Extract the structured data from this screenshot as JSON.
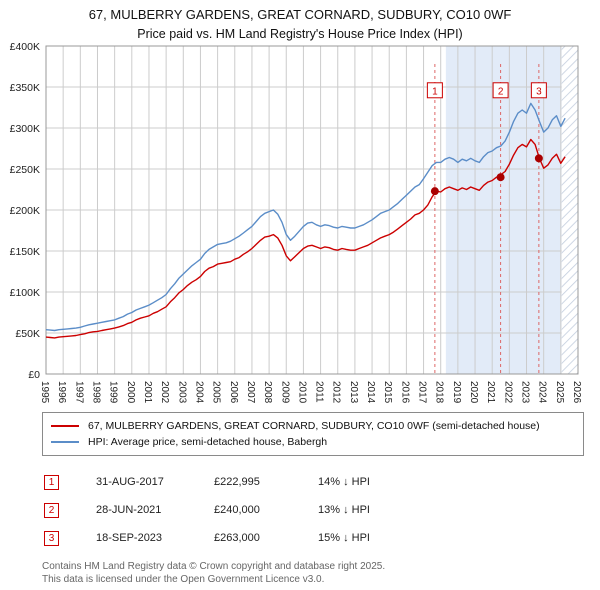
{
  "title": "67, MULBERRY GARDENS, GREAT CORNARD, SUDBURY, CO10 0WF",
  "subtitle": "Price paid vs. HM Land Registry's House Price Index (HPI)",
  "colors": {
    "property": "#cc0000",
    "hpi": "#5b8dc8",
    "sale_dot": "#aa0000",
    "dashed_line": "#dd6666",
    "grid": "#cccccc",
    "plot_border": "#999999",
    "shade": "#e2ebf8",
    "hatch_line": "#c3cede",
    "axis_text": "#222222"
  },
  "legend": {
    "items": [
      {
        "label": "67, MULBERRY GARDENS, GREAT CORNARD, SUDBURY, CO10 0WF (semi-detached house)",
        "color": "#cc0000"
      },
      {
        "label": "HPI: Average price, semi-detached house, Babergh",
        "color": "#5b8dc8"
      }
    ]
  },
  "table": {
    "rows": [
      {
        "num": "1",
        "date": "31-AUG-2017",
        "price": "£222,995",
        "vs_hpi": "14% ↓ HPI"
      },
      {
        "num": "2",
        "date": "28-JUN-2021",
        "price": "£240,000",
        "vs_hpi": "13% ↓ HPI"
      },
      {
        "num": "3",
        "date": "18-SEP-2023",
        "price": "£263,000",
        "vs_hpi": "15% ↓ HPI"
      }
    ]
  },
  "footer": {
    "line1": "Contains HM Land Registry data © Crown copyright and database right 2025.",
    "line2": "This data is licensed under the Open Government Licence v3.0."
  },
  "chart_data": {
    "type": "line",
    "title": "67, MULBERRY GARDENS, GREAT CORNARD, SUDBURY, CO10 0WF",
    "subtitle": "Price paid vs. HM Land Registry's House Price Index (HPI)",
    "x_unit": "year",
    "y_unit": "GBP thousands",
    "xlim": [
      1995,
      2026
    ],
    "ylim": [
      0,
      400
    ],
    "xticks": [
      1995,
      1996,
      1997,
      1998,
      1999,
      2000,
      2001,
      2002,
      2003,
      2004,
      2005,
      2006,
      2007,
      2008,
      2009,
      2010,
      2011,
      2012,
      2013,
      2014,
      2015,
      2016,
      2017,
      2018,
      2019,
      2020,
      2021,
      2022,
      2023,
      2024,
      2025,
      2026
    ],
    "yticks": [
      {
        "v": 0,
        "label": "£0"
      },
      {
        "v": 50,
        "label": "£50K"
      },
      {
        "v": 100,
        "label": "£100K"
      },
      {
        "v": 150,
        "label": "£150K"
      },
      {
        "v": 200,
        "label": "£200K"
      },
      {
        "v": 250,
        "label": "£250K"
      },
      {
        "v": 300,
        "label": "£300K"
      },
      {
        "v": 350,
        "label": "£350K"
      },
      {
        "v": 400,
        "label": "£400K"
      }
    ],
    "grid": true,
    "legend_position": "below",
    "shaded_span": [
      2018.3,
      2025.05
    ],
    "hatched_span": [
      2025.05,
      2026
    ],
    "sale_marker_level_k": 346,
    "dashed_line_top_k": 378,
    "series": [
      {
        "name": "price_paid_estimate_semi_detached",
        "color": "#cc0000",
        "x_start": 1995,
        "x_step": 0.25,
        "y": [
          45,
          44.5,
          44,
          45,
          45.5,
          46,
          46.5,
          47,
          48,
          49,
          50.5,
          51.5,
          52,
          53,
          54,
          55,
          56,
          57.5,
          59,
          61.5,
          63,
          66,
          68,
          69.5,
          71,
          74,
          76,
          79,
          82,
          88,
          93,
          99,
          103,
          108,
          112,
          115,
          119,
          125,
          129,
          131,
          134,
          135,
          136,
          137,
          140,
          142,
          146,
          149,
          153,
          158,
          163,
          167,
          168,
          170,
          166,
          157,
          144,
          138,
          143,
          148,
          153,
          156,
          157,
          155,
          153,
          155,
          154,
          152,
          151,
          153,
          152,
          151,
          151,
          153,
          155,
          157,
          160,
          163,
          166,
          168,
          170,
          173,
          177,
          181,
          185,
          189,
          194,
          196,
          200,
          206,
          216,
          223,
          222,
          226,
          228,
          226,
          224,
          227,
          225,
          228,
          226,
          224,
          230,
          234,
          236,
          240,
          243,
          247,
          256,
          267,
          276,
          280,
          277,
          286,
          280,
          263,
          251,
          255,
          263,
          268,
          257,
          265
        ]
      },
      {
        "name": "hpi_average_semi_detached_babergh",
        "color": "#5b8dc8",
        "x_start": 1995,
        "x_step": 0.25,
        "y": [
          54,
          53.5,
          53,
          54,
          54.5,
          55,
          55.5,
          56,
          57,
          58.5,
          60,
          61,
          62,
          63,
          64,
          65,
          66,
          68,
          70,
          73,
          75,
          78,
          80,
          82,
          84,
          87,
          90,
          93,
          97,
          104,
          110,
          117,
          122,
          127,
          132,
          136,
          140,
          147,
          152,
          155,
          158,
          159,
          160,
          162,
          165,
          168,
          172,
          176,
          180,
          186,
          192,
          196,
          198,
          200,
          195,
          185,
          170,
          163,
          168,
          174,
          180,
          184,
          185,
          182,
          180,
          182,
          181,
          179,
          178,
          180,
          179,
          178,
          178,
          180,
          182,
          185,
          188,
          192,
          196,
          198,
          200,
          204,
          208,
          213,
          218,
          223,
          228,
          231,
          238,
          246,
          254,
          258,
          258,
          262,
          264,
          262,
          258,
          262,
          260,
          263,
          260,
          258,
          265,
          270,
          272,
          276,
          278,
          284,
          295,
          308,
          318,
          322,
          318,
          330,
          322,
          308,
          295,
          300,
          310,
          315,
          302,
          312
        ]
      }
    ],
    "sales": [
      {
        "label": "1",
        "year": 2017.66,
        "price_k": 222.995,
        "date": "31-AUG-2017",
        "price": "£222,995",
        "vs_hpi": "14% ↓ HPI"
      },
      {
        "label": "2",
        "year": 2021.49,
        "price_k": 240,
        "date": "28-JUN-2021",
        "price": "£240,000",
        "vs_hpi": "13% ↓ HPI"
      },
      {
        "label": "3",
        "year": 2023.72,
        "price_k": 263,
        "date": "18-SEP-2023",
        "price": "£263,000",
        "vs_hpi": "15% ↓ HPI"
      }
    ]
  }
}
